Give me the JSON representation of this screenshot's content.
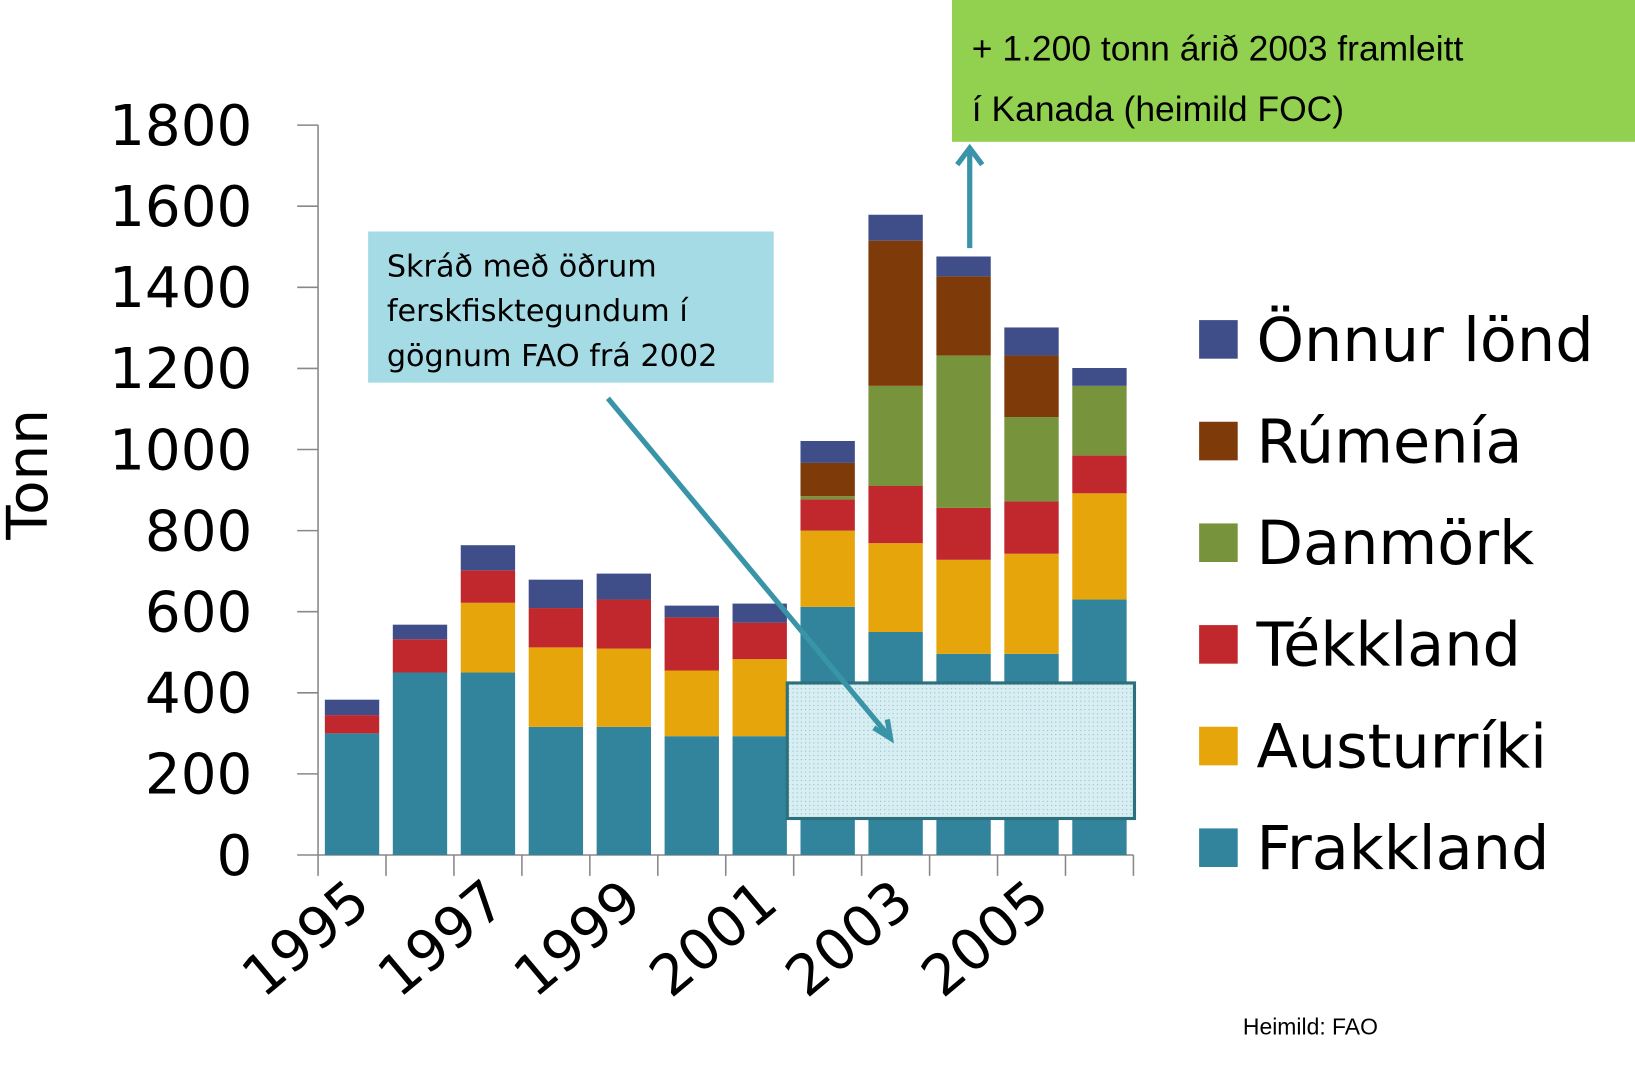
{
  "chart_data": {
    "type": "stacked_bar",
    "y_label": "Tonn",
    "categories": [
      "1995",
      null,
      "1997",
      null,
      "1999",
      null,
      "2001",
      null,
      "2003",
      null,
      "2005",
      null
    ],
    "series": [
      {
        "name": "Frakkland",
        "color": "#31849b",
        "values": [
          300,
          450,
          450,
          316,
          316,
          293,
          293,
          612,
          550,
          496,
          496,
          630
        ]
      },
      {
        "name": "Austurríki",
        "color": "#e6a50a",
        "values": [
          0,
          0,
          172,
          196,
          193,
          162,
          190,
          188,
          219,
          232,
          247,
          262
        ]
      },
      {
        "name": "Tékkland",
        "color": "#c0282d",
        "values": [
          45,
          82,
          80,
          97,
          121,
          131,
          90,
          77,
          141,
          128,
          129,
          93
        ]
      },
      {
        "name": "Danmörk",
        "color": "#77933c",
        "values": [
          0,
          0,
          0,
          0,
          0,
          0,
          0,
          8,
          247,
          376,
          208,
          172
        ]
      },
      {
        "name": "Rúmenía",
        "color": "#7f3a0a",
        "values": [
          0,
          0,
          0,
          0,
          0,
          0,
          0,
          82,
          358,
          195,
          152,
          0
        ]
      },
      {
        "name": "Önnur lönd",
        "color": "#3f4e88",
        "values": [
          38,
          36,
          62,
          70,
          64,
          29,
          47,
          54,
          64,
          49,
          69,
          44
        ]
      }
    ],
    "ylim": [
      0,
      1800
    ],
    "yticks": [
      0,
      200,
      400,
      600,
      800,
      1000,
      1200,
      1400,
      1600,
      1800
    ],
    "grid": false,
    "legend": "right",
    "annotations": [
      [
        "+ 1.200 tonn árið 2003 framleitt",
        "í Kanada (heimild FOC)"
      ],
      [
        "Skráð með öðrum",
        "ferskfisktegundum í",
        "gögnum FAO frá 2002"
      ]
    ],
    "source": "Heimild: FAO"
  }
}
